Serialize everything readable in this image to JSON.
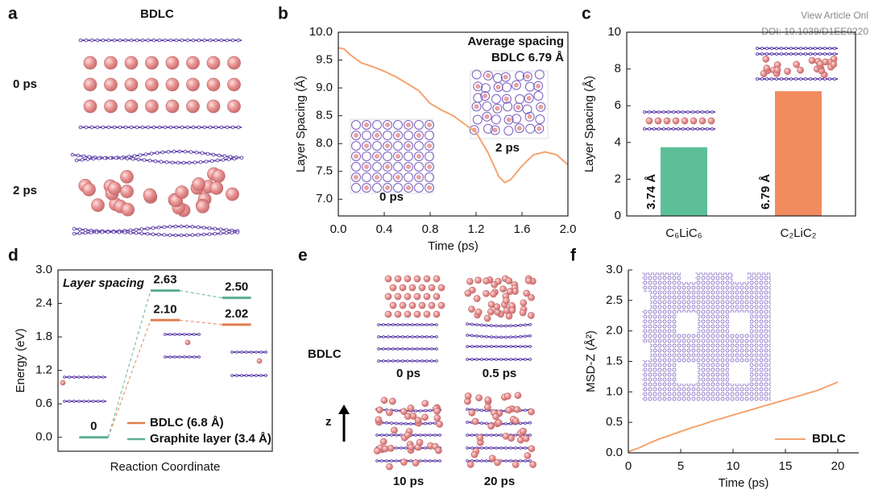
{
  "watermark": {
    "line1": "View Article Onl",
    "line2": "DOI: 10.1039/D1EE0220"
  },
  "panel_a": {
    "label": "a",
    "title": "BDLC",
    "states": [
      "0 ps",
      "2 ps"
    ]
  },
  "panel_e": {
    "label": "e",
    "title": "BDLC",
    "states": [
      "0 ps",
      "0.5 ps",
      "10 ps",
      "20 ps"
    ],
    "axis": "z"
  },
  "chart_data": [
    {
      "panel_label": "b",
      "type": "line",
      "xlabel": "Time (ps)",
      "ylabel": "Layer Spacing (Å)",
      "annotations": [
        "Average spacing",
        "BDLC 6.79 Å"
      ],
      "inset_labels": [
        "0 ps",
        "2 ps"
      ],
      "color": "#f4a470",
      "x": [
        0,
        0.05,
        0.1,
        0.2,
        0.3,
        0.4,
        0.5,
        0.6,
        0.7,
        0.8,
        0.9,
        1.0,
        1.1,
        1.2,
        1.3,
        1.4,
        1.45,
        1.5,
        1.6,
        1.7,
        1.8,
        1.9,
        2.0
      ],
      "values": [
        9.72,
        9.7,
        9.6,
        9.45,
        9.38,
        9.3,
        9.2,
        9.08,
        8.95,
        8.72,
        8.6,
        8.5,
        8.35,
        8.2,
        7.85,
        7.4,
        7.3,
        7.35,
        7.6,
        7.8,
        7.85,
        7.8,
        7.62
      ],
      "xlim": [
        0,
        2
      ],
      "xticks": [
        {
          "value": 0,
          "label": "0.0"
        },
        0.4,
        0.8,
        1.2,
        1.6,
        {
          "value": 2,
          "label": "2.0"
        }
      ],
      "ylim": [
        6.7,
        10
      ],
      "yticks": [
        {
          "value": 7,
          "label": "7.0"
        },
        7.5,
        {
          "value": 8,
          "label": "8.0"
        },
        8.5,
        {
          "value": 9,
          "label": "9.0"
        },
        9.5,
        {
          "value": 10,
          "label": "10.0"
        }
      ]
    },
    {
      "panel_label": "c",
      "type": "bar",
      "ylabel": "Layer Spacing (Å)",
      "categories": [
        "C₆LiC₆",
        "C₂LiC₂"
      ],
      "values": [
        3.74,
        6.79
      ],
      "value_labels": [
        "3.74 Å",
        "6.79 Å"
      ],
      "colors": [
        "#5dbf98",
        "#f28b5e"
      ],
      "ylim": [
        0,
        10
      ],
      "yticks": [
        0,
        2,
        4,
        6,
        8,
        10
      ]
    },
    {
      "panel_label": "d",
      "type": "level",
      "xlabel": "Reaction Coordinate",
      "ylabel": "Energy (eV)",
      "annotation": "Layer spacing",
      "categories": [
        null,
        null,
        null
      ],
      "series": [
        {
          "name": "BDLC (6.8 Å)",
          "color": "#e07f4f",
          "values": [
            null,
            2.1,
            2.02
          ],
          "value_labels": [
            null,
            "2.10",
            "2.02"
          ]
        },
        {
          "name": "Graphite layer (3.4 Å)",
          "color": "#5dae90",
          "values": [
            0,
            2.63,
            2.5
          ],
          "value_labels": [
            "0",
            "2.63",
            "2.50"
          ]
        }
      ],
      "ylim": [
        -0.25,
        3.0
      ],
      "yticks": [
        {
          "value": 0,
          "label": "0.0"
        },
        0.6,
        1.2,
        1.8,
        2.4,
        {
          "value": 3,
          "label": "3.0"
        }
      ]
    },
    {
      "panel_label": "f",
      "type": "line",
      "xlabel": "Time (ps)",
      "ylabel": "MSD-Z (Å²)",
      "x": [
        0,
        1,
        2,
        3,
        4,
        5,
        6,
        7,
        8,
        9,
        10,
        11,
        12,
        13,
        14,
        15,
        16,
        17,
        18,
        19,
        20
      ],
      "series": [
        {
          "name": "BDLC",
          "color": "#f4a470",
          "values": [
            0.02,
            0.08,
            0.16,
            0.23,
            0.29,
            0.35,
            0.41,
            0.46,
            0.52,
            0.57,
            0.62,
            0.67,
            0.72,
            0.77,
            0.82,
            0.87,
            0.92,
            0.97,
            1.02,
            1.09,
            1.16
          ]
        }
      ],
      "xlim": [
        0,
        22
      ],
      "xticks": [
        0,
        5,
        10,
        15,
        20
      ],
      "ylim": [
        0,
        3
      ],
      "yticks": [
        {
          "value": 0,
          "label": "0.0"
        },
        0.5,
        {
          "value": 1,
          "label": "1.0"
        },
        1.5,
        {
          "value": 2,
          "label": "2.0"
        },
        2.5,
        {
          "value": 3,
          "label": "3.0"
        }
      ],
      "legend": "lower right"
    }
  ]
}
